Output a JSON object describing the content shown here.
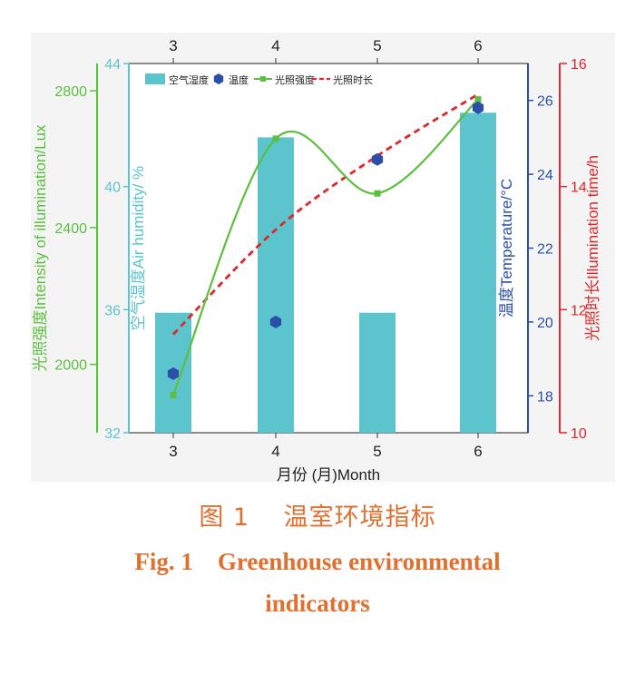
{
  "chart_data": {
    "type": "bar",
    "categories": [
      "3",
      "4",
      "5",
      "6"
    ],
    "xlabel": "月份 (月)Month",
    "top_ticks": [
      "3",
      "4",
      "5",
      "6"
    ],
    "legend": {
      "placement": "top-left",
      "entries": [
        "空气湿度",
        "温度",
        "光照强度",
        "光照时长"
      ]
    },
    "series": [
      {
        "name": "空气湿度",
        "type": "bar",
        "axis": "air_humidity",
        "values": [
          35.9,
          41.6,
          35.9,
          42.4
        ],
        "color": "#5cc4cc"
      },
      {
        "name": "温度",
        "type": "scatter",
        "axis": "temperature",
        "values": [
          18.6,
          20.0,
          24.4,
          25.8
        ],
        "color": "#2b4fa8"
      },
      {
        "name": "光照强度",
        "type": "line",
        "axis": "light_intensity",
        "values": [
          1910,
          2660,
          2500,
          2775
        ],
        "color": "#5cbf3f"
      },
      {
        "name": "光照时长",
        "type": "line",
        "axis": "illumination_time",
        "values": [
          11.6,
          13.3,
          14.5,
          15.5
        ],
        "color": "#e0262a"
      }
    ],
    "axes": {
      "light_intensity": {
        "label": "光照强度Intensity of illumination/Lux",
        "ticks": [
          "2000",
          "2400",
          "2800"
        ],
        "range": [
          1800,
          2880
        ],
        "color": "#5cbf3f"
      },
      "air_humidity": {
        "label": "空气湿度Air humidity/ %",
        "ticks": [
          "32",
          "36",
          "40",
          "44"
        ],
        "range": [
          32,
          44
        ],
        "color": "#5cc4cc"
      },
      "temperature": {
        "label": "温度Temperature/°C",
        "ticks": [
          "18",
          "20",
          "22",
          "24",
          "26"
        ],
        "range": [
          17,
          27
        ],
        "color": "#2b4fa8"
      },
      "illumination_time": {
        "label": "光照时长Illumination time/h",
        "ticks": [
          "10",
          "12",
          "14",
          "16"
        ],
        "range": [
          10,
          16
        ],
        "color": "#e0262a"
      }
    }
  },
  "caption": {
    "cn": "图 1　 温室环境指标",
    "en_line1": "Fig. 1　Greenhouse environmental",
    "en_line2": "indicators"
  }
}
